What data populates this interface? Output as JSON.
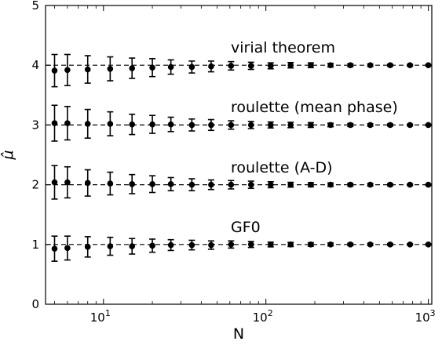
{
  "chart_data": {
    "type": "scatter",
    "title": "",
    "xlabel": "N",
    "ylabel": "μ̂",
    "xscale": "log",
    "xlim": [
      4.4,
      1050
    ],
    "ylim": [
      0,
      5
    ],
    "grid": false,
    "x_ticks": [
      10,
      100,
      1000
    ],
    "x_tick_labels": [
      {
        "base": "10",
        "exp": "1"
      },
      {
        "base": "10",
        "exp": "2"
      },
      {
        "base": "10",
        "exp": "3"
      }
    ],
    "y_ticks": [
      0,
      1,
      2,
      3,
      4,
      5
    ],
    "y_tick_labels": [
      "0",
      "1",
      "2",
      "3",
      "4",
      "5"
    ],
    "x": [
      5,
      6,
      8,
      11,
      15,
      20,
      26,
      35,
      46,
      61,
      81,
      107,
      142,
      189,
      250,
      331,
      439,
      582,
      771,
      1000
    ],
    "series": [
      {
        "label": "GF0",
        "reference": 1,
        "values": [
          0.93,
          0.94,
          0.96,
          0.97,
          0.97,
          0.98,
          0.99,
          0.99,
          0.99,
          1.0,
          1.0,
          1.0,
          1.0,
          1.0,
          1.0,
          1.0,
          1.0,
          1.0,
          1.0,
          1.0
        ],
        "errors": [
          0.21,
          0.2,
          0.17,
          0.15,
          0.13,
          0.11,
          0.09,
          0.08,
          0.07,
          0.06,
          0.05,
          0.04,
          0.035,
          0.03,
          0.025,
          0.02,
          0.018,
          0.015,
          0.012,
          0.01
        ]
      },
      {
        "label": "roulette (A-D)",
        "reference": 2,
        "values": [
          2.04,
          2.04,
          2.03,
          2.02,
          2.01,
          2.01,
          2.01,
          2.0,
          2.0,
          2.0,
          2.0,
          2.0,
          2.0,
          2.0,
          2.0,
          2.0,
          2.0,
          2.0,
          2.0,
          2.0
        ],
        "errors": [
          0.28,
          0.26,
          0.22,
          0.19,
          0.16,
          0.14,
          0.11,
          0.1,
          0.08,
          0.07,
          0.06,
          0.05,
          0.04,
          0.035,
          0.03,
          0.025,
          0.02,
          0.018,
          0.015,
          0.012
        ]
      },
      {
        "label": "roulette (mean phase)",
        "reference": 3,
        "values": [
          3.03,
          3.03,
          3.02,
          3.02,
          3.01,
          3.01,
          3.01,
          3.0,
          3.0,
          3.0,
          3.0,
          3.0,
          3.0,
          3.0,
          3.0,
          3.0,
          3.0,
          3.0,
          3.0,
          3.0
        ],
        "errors": [
          0.3,
          0.28,
          0.24,
          0.2,
          0.17,
          0.15,
          0.12,
          0.1,
          0.09,
          0.07,
          0.06,
          0.05,
          0.045,
          0.04,
          0.03,
          0.025,
          0.02,
          0.018,
          0.015,
          0.012
        ]
      },
      {
        "label": "virial theorem",
        "reference": 4,
        "values": [
          3.91,
          3.92,
          3.93,
          3.94,
          3.95,
          3.96,
          3.97,
          3.97,
          3.98,
          3.99,
          3.99,
          3.99,
          4.0,
          4.0,
          4.0,
          4.0,
          4.0,
          4.0,
          4.0,
          4.0
        ],
        "errors": [
          0.27,
          0.26,
          0.23,
          0.2,
          0.17,
          0.15,
          0.12,
          0.1,
          0.09,
          0.07,
          0.06,
          0.05,
          0.045,
          0.04,
          0.03,
          0.025,
          0.02,
          0.018,
          0.015,
          0.012
        ]
      }
    ],
    "marker_color": "#000000",
    "line_style": "dashed"
  }
}
